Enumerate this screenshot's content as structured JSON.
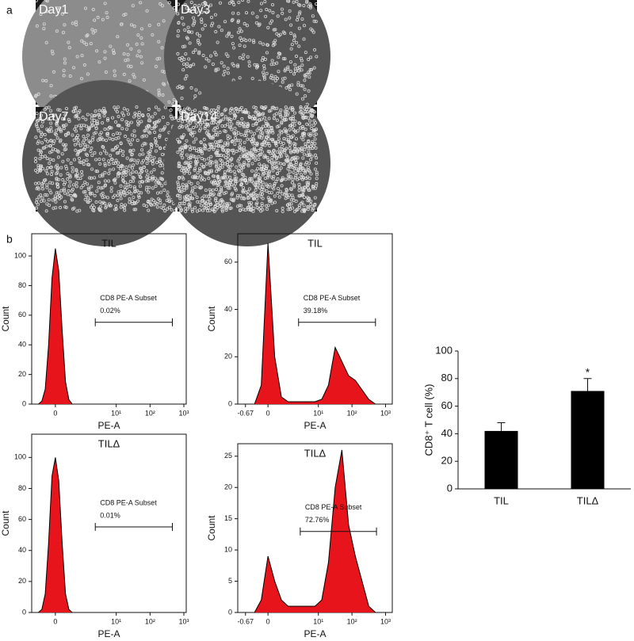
{
  "panel_labels": [
    "a",
    "b"
  ],
  "micrographs": [
    "Day1",
    "Day3",
    "Day7",
    "Day14"
  ],
  "chart_data": [
    {
      "type": "area",
      "title": "TIL",
      "xlabel": "PE-A",
      "ylabel": "Count",
      "color": "#e8141b",
      "gate_name": "CD8 PE-A Subset",
      "gate_label": "0.02%",
      "gate": [
        1.18,
        3.46
      ],
      "x": [
        -0.5,
        -0.4,
        -0.3,
        -0.2,
        -0.1,
        0,
        0.1,
        0.2,
        0.3,
        0.4,
        0.5
      ],
      "values": [
        0,
        2,
        10,
        40,
        85,
        105,
        90,
        50,
        15,
        3,
        0
      ],
      "xlim": [
        -0.7,
        3.87
      ],
      "xticks": [
        0,
        {
          "value": 1.8,
          "label": "10¹"
        },
        {
          "value": 2.8,
          "label": "10²"
        },
        {
          "value": 3.8,
          "label": "10³"
        }
      ],
      "ylim": [
        0,
        115
      ],
      "yticks": [
        0,
        20,
        40,
        60,
        80,
        100
      ]
    },
    {
      "type": "area",
      "title": "TIL",
      "xlabel": "PE-A",
      "ylabel": "Count",
      "color": "#e8141b",
      "gate_name": "CD8 PE-A Subset",
      "gate_label": "39.18%",
      "gate": [
        0.91,
        3.2
      ],
      "x": [
        -0.4,
        -0.2,
        0,
        0.2,
        0.4,
        0.6,
        0.8,
        1.0,
        1.2,
        1.4,
        1.6,
        1.8,
        2.0,
        2.2,
        2.4,
        2.6,
        2.8,
        3.0,
        3.2
      ],
      "values": [
        0,
        8,
        68,
        20,
        3,
        1,
        1,
        1,
        1,
        1,
        2,
        8,
        24,
        18,
        12,
        10,
        6,
        2,
        0
      ],
      "xlim": [
        -0.9,
        3.7
      ],
      "xticks": [
        -0.67,
        0,
        {
          "value": 1.5,
          "label": "10¹"
        },
        {
          "value": 2.5,
          "label": "10²"
        },
        {
          "value": 3.5,
          "label": "10³"
        }
      ],
      "ylim": [
        0,
        72
      ],
      "yticks": [
        0,
        20,
        40,
        60
      ]
    },
    {
      "type": "area",
      "title": "TILΔ",
      "xlabel": "PE-A",
      "ylabel": "Count",
      "color": "#e8141b",
      "gate_name": "CD8 PE-A Subset",
      "gate_label": "0.01%",
      "gate": [
        1.18,
        3.46
      ],
      "x": [
        -0.5,
        -0.4,
        -0.3,
        -0.2,
        -0.1,
        0,
        0.1,
        0.2,
        0.3,
        0.4,
        0.5
      ],
      "values": [
        0,
        2,
        12,
        45,
        88,
        100,
        85,
        45,
        12,
        2,
        0
      ],
      "xlim": [
        -0.7,
        3.87
      ],
      "xticks": [
        0,
        {
          "value": 1.8,
          "label": "10¹"
        },
        {
          "value": 2.8,
          "label": "10²"
        },
        {
          "value": 3.8,
          "label": "10³"
        }
      ],
      "ylim": [
        0,
        115
      ],
      "yticks": [
        0,
        20,
        40,
        60,
        80,
        100
      ]
    },
    {
      "type": "area",
      "title": "TILΔ",
      "xlabel": "PE-A",
      "ylabel": "Count",
      "color": "#e8141b",
      "gate_name": "CD8 PE-A Subset",
      "gate_label": "72.76%",
      "gate": [
        0.96,
        3.23
      ],
      "x": [
        -0.4,
        -0.2,
        0,
        0.2,
        0.4,
        0.6,
        0.8,
        1.0,
        1.2,
        1.4,
        1.6,
        1.8,
        2.0,
        2.2,
        2.4,
        2.6,
        2.8,
        3.0,
        3.2
      ],
      "values": [
        0,
        2,
        9,
        5,
        2,
        1,
        1,
        1,
        1,
        1,
        2,
        8,
        20,
        26,
        14,
        9,
        5,
        1,
        0
      ],
      "xlim": [
        -0.9,
        3.7
      ],
      "xticks": [
        -0.67,
        0,
        {
          "value": 1.5,
          "label": "10¹"
        },
        {
          "value": 2.5,
          "label": "10²"
        },
        {
          "value": 3.5,
          "label": "10³"
        }
      ],
      "ylim": [
        0,
        27
      ],
      "yticks": [
        0,
        5,
        10,
        15,
        20,
        25
      ]
    },
    {
      "type": "bar",
      "ylabel": "CD8⁺ T cell (%)",
      "categories": [
        "TIL",
        "TILΔ"
      ],
      "values": [
        42,
        71
      ],
      "errors": [
        6,
        9
      ],
      "annotations": [
        null,
        "*"
      ],
      "color": "#000000",
      "ylim": [
        0,
        100
      ],
      "yticks": [
        0,
        20,
        40,
        60,
        80,
        100
      ]
    }
  ]
}
